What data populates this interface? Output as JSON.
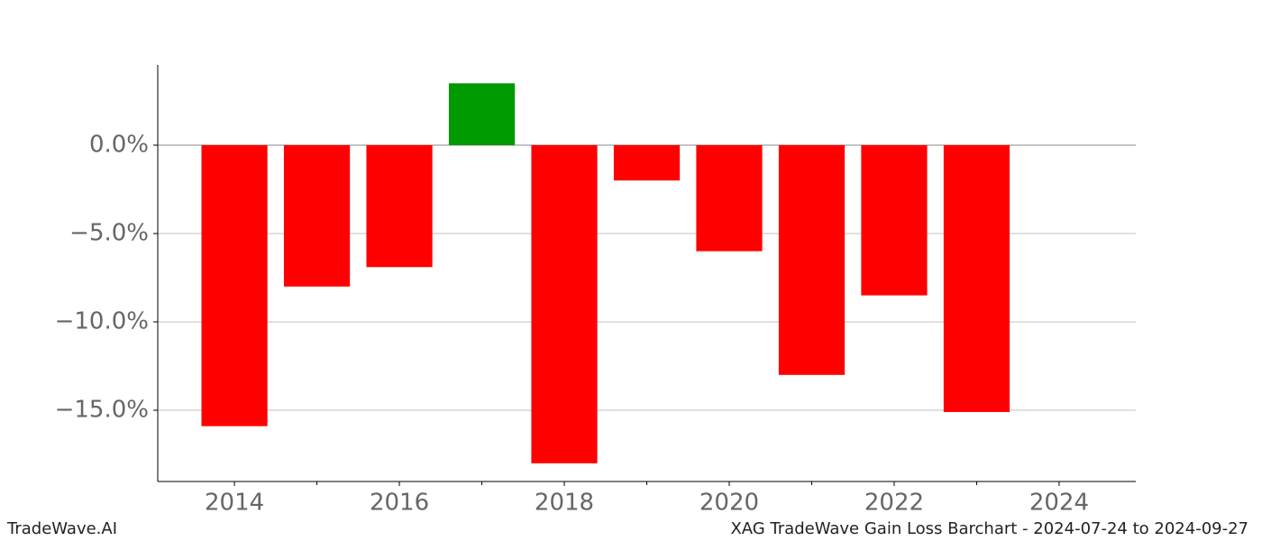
{
  "chart_data": {
    "type": "bar",
    "title": "XAG TradeWave Gain Loss Barchart - 2024-07-24 to 2024-09-27",
    "brand": "TradeWave.AI",
    "x": [
      2014,
      2015,
      2016,
      2017,
      2018,
      2019,
      2020,
      2021,
      2022,
      2023
    ],
    "values": [
      -15.9,
      -8.0,
      -6.9,
      3.5,
      -18.0,
      -2.0,
      -6.0,
      -13.0,
      -8.5,
      -15.1
    ],
    "colors": [
      "#ff0000",
      "#ff0000",
      "#ff0000",
      "#009900",
      "#ff0000",
      "#ff0000",
      "#ff0000",
      "#ff0000",
      "#ff0000",
      "#ff0000"
    ],
    "xlim": [
      2013.07,
      2024.93
    ],
    "xticks": [
      2014,
      2016,
      2018,
      2020,
      2022,
      2024
    ],
    "minor_xticks": [
      2015,
      2017,
      2019,
      2021,
      2023
    ],
    "ylim": [
      -19.03,
      4.54
    ],
    "yticks": [
      {
        "value": 0,
        "label": "0.0%"
      },
      {
        "value": -5,
        "label": "−5.0%"
      },
      {
        "value": -10,
        "label": "−10.0%"
      },
      {
        "value": -15,
        "label": "−15.0%"
      }
    ],
    "grid": true
  }
}
